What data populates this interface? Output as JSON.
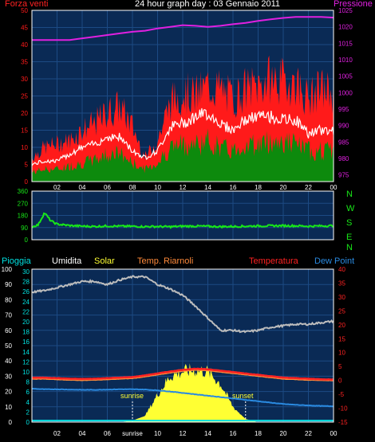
{
  "title": "24 hour graph day : 03 Gennaio 2011",
  "colors": {
    "bg": "#000000",
    "plot_bg": "#0a2a55",
    "grid": "#1c4a84",
    "frame": "#ffffff",
    "wind": "#ff1a1a",
    "wind_avg": "#ffffff",
    "wind_base": "#0d8a0d",
    "pressure": "#e020e0",
    "direction": "#18e818",
    "humidity": "#bdbdbd",
    "solar": "#ffff33",
    "temp": "#ff2222",
    "dew": "#2a8ae0",
    "rain": "#00e0e0"
  },
  "x_ticks": [
    "02",
    "04",
    "06",
    "08",
    "10",
    "12",
    "14",
    "16",
    "18",
    "20",
    "22",
    "00"
  ],
  "chart_data": [
    {
      "type": "line",
      "name": "wind-pressure",
      "labels": {
        "left": "Forza venti",
        "right": "Pressione"
      },
      "left_ticks": [
        "0",
        "5",
        "10",
        "15",
        "20",
        "25",
        "30",
        "35",
        "40",
        "45",
        "50"
      ],
      "right_ticks": [
        "975",
        "980",
        "985",
        "990",
        "995",
        "1000",
        "1005",
        "1010",
        "1015",
        "1020",
        "1025"
      ],
      "ylim_left": [
        0,
        50
      ],
      "ylim_right": [
        973,
        1025
      ],
      "x": [
        0,
        1,
        2,
        3,
        4,
        5,
        6,
        7,
        8,
        9,
        10,
        11,
        12,
        13,
        14,
        15,
        16,
        17,
        18,
        19,
        20,
        21,
        22,
        23,
        24
      ],
      "series": [
        {
          "name": "Pressione",
          "axis": "right",
          "values": [
            1016,
            1016,
            1016,
            1016,
            1016.5,
            1017,
            1017.5,
            1018,
            1018.5,
            1018.8,
            1019.5,
            1020,
            1020.5,
            1020.3,
            1020,
            1020.3,
            1020.8,
            1021.2,
            1021.8,
            1022.3,
            1022.7,
            1023,
            1023,
            1023,
            1022.8
          ]
        },
        {
          "name": "gust",
          "axis": "left",
          "values": [
            7,
            10,
            11,
            12,
            15,
            17,
            20,
            22,
            16,
            7,
            12,
            23,
            26,
            25,
            28,
            27,
            24,
            27,
            28,
            30,
            29,
            29,
            24,
            27,
            26
          ]
        },
        {
          "name": "avg",
          "axis": "left",
          "values": [
            5,
            6,
            6,
            8,
            10,
            11,
            13,
            13,
            9,
            7,
            9,
            16,
            17,
            19,
            20,
            17,
            15,
            18,
            19,
            19,
            18,
            18,
            14,
            15,
            15
          ]
        },
        {
          "name": "base",
          "axis": "left",
          "values": [
            3,
            4,
            4,
            5,
            6,
            7,
            9,
            9,
            6,
            4,
            6,
            11,
            12,
            12,
            13,
            11,
            10,
            12,
            12,
            13,
            13,
            12,
            10,
            10,
            10
          ]
        }
      ]
    },
    {
      "type": "line",
      "name": "direction",
      "labels": {
        "right": [
          "N",
          "W",
          "S",
          "E",
          "N"
        ]
      },
      "left_ticks": [
        "0",
        "90",
        "180",
        "270",
        "360"
      ],
      "ylim": [
        0,
        360
      ],
      "x": [
        0,
        0.5,
        1,
        1.5,
        2,
        3,
        4,
        5,
        6,
        7,
        8,
        9,
        10,
        11,
        12,
        13,
        14,
        15,
        16,
        17,
        18,
        19,
        20,
        21,
        22,
        23,
        24
      ],
      "series": [
        {
          "name": "direction",
          "values": [
            95,
            110,
            200,
            140,
            115,
            105,
            100,
            98,
            102,
            100,
            99,
            97,
            98,
            96,
            100,
            101,
            99,
            97,
            98,
            100,
            102,
            103,
            104,
            103,
            100,
            102,
            104
          ]
        }
      ]
    },
    {
      "type": "line",
      "name": "weather",
      "labels": {
        "left": "Pioggia",
        "humidity": "Umidita",
        "solar": "Solar",
        "heat": "Temp. Riarnoli",
        "temp": "Temperatura",
        "dew": "Dew Point"
      },
      "ticks_pct": [
        "0",
        "10",
        "20",
        "30",
        "40",
        "50",
        "60",
        "70",
        "80",
        "90",
        "100"
      ],
      "ticks_rain": [
        "0",
        "2",
        "4",
        "6",
        "8",
        "10",
        "12",
        "14",
        "16",
        "18",
        "20",
        "22",
        "24",
        "26",
        "28",
        "30"
      ],
      "ticks_temp": [
        "-15",
        "-10",
        "-5",
        "0",
        "5",
        "10",
        "15",
        "20",
        "25",
        "30",
        "35",
        "40"
      ],
      "ylim_pct": [
        0,
        100
      ],
      "ylim_temp": [
        -15,
        40
      ],
      "annotations": [
        {
          "text": "sunrise",
          "x": 8.0
        },
        {
          "text": "sunset",
          "x": 17.0
        }
      ],
      "x_tick_override": {
        "08": "sunrise"
      },
      "x": [
        0,
        1,
        2,
        3,
        4,
        5,
        6,
        7,
        8,
        9,
        10,
        11,
        12,
        13,
        14,
        15,
        16,
        17,
        18,
        19,
        20,
        21,
        22,
        23,
        24
      ],
      "series": [
        {
          "name": "Umidita",
          "axis": "pct",
          "values": [
            85,
            86,
            88,
            90,
            92,
            92,
            90,
            93,
            95,
            95,
            90,
            87,
            83,
            76,
            68,
            60,
            60,
            59,
            60,
            62,
            63,
            64,
            64,
            65,
            66
          ]
        },
        {
          "name": "Temperatura",
          "axis": "temp",
          "values": [
            1,
            1,
            0.8,
            0.6,
            0.5,
            0.6,
            0.8,
            1,
            1.2,
            1.8,
            2.5,
            3.2,
            3.8,
            4.2,
            4,
            3.5,
            3,
            2.5,
            2,
            1.5,
            1,
            0.8,
            0.6,
            0.4,
            0.3
          ]
        },
        {
          "name": "Temp. Riarnoli",
          "axis": "temp",
          "values": [
            0.5,
            0.5,
            0.3,
            0.1,
            0,
            0.1,
            0.3,
            0.5,
            0.7,
            1.3,
            2,
            2.7,
            3.3,
            3.7,
            3.5,
            3,
            2.5,
            2,
            1.5,
            1,
            0.5,
            0.3,
            0.1,
            0,
            -0.1
          ]
        },
        {
          "name": "Dew Point",
          "axis": "temp",
          "values": [
            -3,
            -3.2,
            -3.2,
            -3.3,
            -3.4,
            -3.4,
            -3.3,
            -3.2,
            -3.2,
            -3.3,
            -3.6,
            -4,
            -4.5,
            -5,
            -5.5,
            -6,
            -6.5,
            -7,
            -7.5,
            -8,
            -8.5,
            -8.8,
            -9,
            -9.2,
            -9.3
          ]
        },
        {
          "name": "Solar",
          "axis": "pct",
          "values": [
            0,
            0,
            0,
            0,
            0,
            0,
            0,
            0,
            1,
            4,
            18,
            30,
            33,
            34,
            33,
            25,
            10,
            2,
            0,
            0,
            0,
            0,
            0,
            0,
            0
          ]
        },
        {
          "name": "Pioggia",
          "axis": "pct",
          "values": [
            1,
            1,
            1,
            1,
            1,
            1,
            1,
            1,
            1,
            1,
            1,
            1,
            1,
            1,
            1,
            1,
            1,
            1,
            1,
            1,
            1,
            1,
            1,
            1,
            1
          ]
        }
      ]
    }
  ]
}
